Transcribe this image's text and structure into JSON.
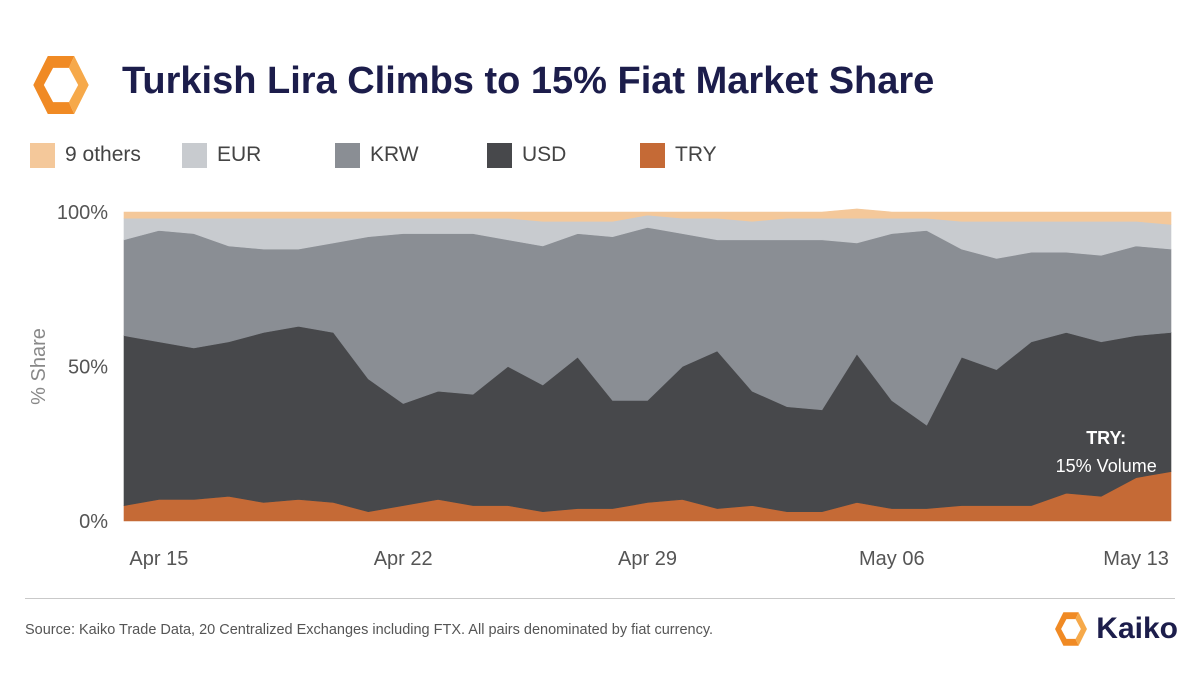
{
  "title": "Turkish Lira Climbs to 15% Fiat Market Share",
  "brand": {
    "name": "Kaiko",
    "logo_icon": "kaiko-logo-icon",
    "logo_color": "#f08a24",
    "title_color": "#1c1d4b"
  },
  "source": "Source: Kaiko Trade Data, 20 Centralized Exchanges including FTX. All pairs denominated by fiat currency.",
  "chart_data": {
    "type": "area",
    "stacked": true,
    "title": "Turkish Lira Climbs to 15% Fiat Market Share",
    "xlabel": "",
    "ylabel": "% Share",
    "ylim": [
      0,
      100
    ],
    "yticks": [
      {
        "value": 0,
        "label": "0%"
      },
      {
        "value": 50,
        "label": "50%"
      },
      {
        "value": 100,
        "label": "100%"
      }
    ],
    "xticks": [
      {
        "index": 1,
        "label": "Apr 15"
      },
      {
        "index": 8,
        "label": "Apr 22"
      },
      {
        "index": 15,
        "label": "Apr 29"
      },
      {
        "index": 22,
        "label": "May 06"
      },
      {
        "index": 29,
        "label": "May 13"
      }
    ],
    "x": [
      "Apr 14",
      "Apr 15",
      "Apr 16",
      "Apr 17",
      "Apr 18",
      "Apr 19",
      "Apr 20",
      "Apr 21",
      "Apr 22",
      "Apr 23",
      "Apr 24",
      "Apr 25",
      "Apr 26",
      "Apr 27",
      "Apr 28",
      "Apr 29",
      "Apr 30",
      "May 01",
      "May 02",
      "May 03",
      "May 04",
      "May 05",
      "May 06",
      "May 07",
      "May 08",
      "May 09",
      "May 10",
      "May 11",
      "May 12",
      "May 13",
      "May 14"
    ],
    "series": [
      {
        "name": "TRY",
        "color": "#c56a36",
        "values": [
          5,
          7,
          7,
          8,
          6,
          7,
          6,
          3,
          5,
          7,
          5,
          5,
          3,
          4,
          4,
          6,
          7,
          4,
          5,
          3,
          3,
          6,
          4,
          4,
          5,
          5,
          5,
          9,
          8,
          14,
          16
        ]
      },
      {
        "name": "USD",
        "color": "#47484b",
        "values": [
          55,
          51,
          49,
          50,
          55,
          56,
          55,
          43,
          33,
          35,
          36,
          45,
          41,
          49,
          35,
          33,
          43,
          51,
          37,
          34,
          33,
          48,
          35,
          27,
          48,
          44,
          53,
          52,
          50,
          46,
          45
        ]
      },
      {
        "name": "KRW",
        "color": "#8a8e94",
        "values": [
          31,
          36,
          37,
          31,
          27,
          25,
          29,
          46,
          55,
          51,
          52,
          41,
          45,
          40,
          53,
          56,
          43,
          36,
          49,
          54,
          55,
          36,
          54,
          63,
          35,
          36,
          29,
          26,
          28,
          29,
          27
        ]
      },
      {
        "name": "EUR",
        "color": "#c8cbcf",
        "values": [
          7,
          4,
          5,
          9,
          10,
          10,
          8,
          6,
          5,
          5,
          5,
          7,
          8,
          4,
          5,
          4,
          5,
          7,
          6,
          7,
          7,
          8,
          5,
          4,
          9,
          12,
          10,
          10,
          11,
          8,
          8
        ]
      },
      {
        "name": "9 others",
        "color": "#f4c89a",
        "values": [
          2,
          2,
          2,
          2,
          2,
          2,
          2,
          2,
          2,
          2,
          2,
          2,
          3,
          3,
          3,
          1,
          2,
          2,
          3,
          2,
          2,
          3,
          2,
          2,
          3,
          3,
          3,
          3,
          3,
          3,
          4
        ]
      }
    ],
    "legend_order": [
      "9 others",
      "EUR",
      "KRW",
      "USD",
      "TRY"
    ],
    "legend_position": "top-left",
    "annotation": {
      "title": "TRY:",
      "text": "15% Volume",
      "index": 28,
      "value": 25
    }
  }
}
